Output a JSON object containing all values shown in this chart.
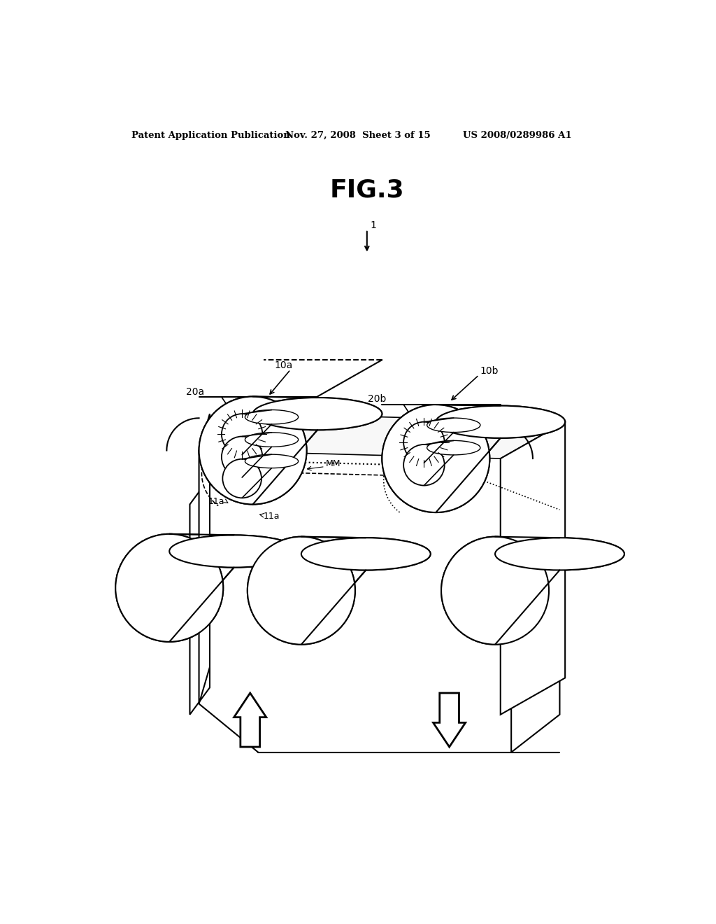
{
  "title": "FIG.3",
  "header_left": "Patent Application Publication",
  "header_mid": "Nov. 27, 2008  Sheet 3 of 15",
  "header_right": "US 2008/0289986 A1",
  "bg_color": "#ffffff",
  "line_color": "#000000"
}
